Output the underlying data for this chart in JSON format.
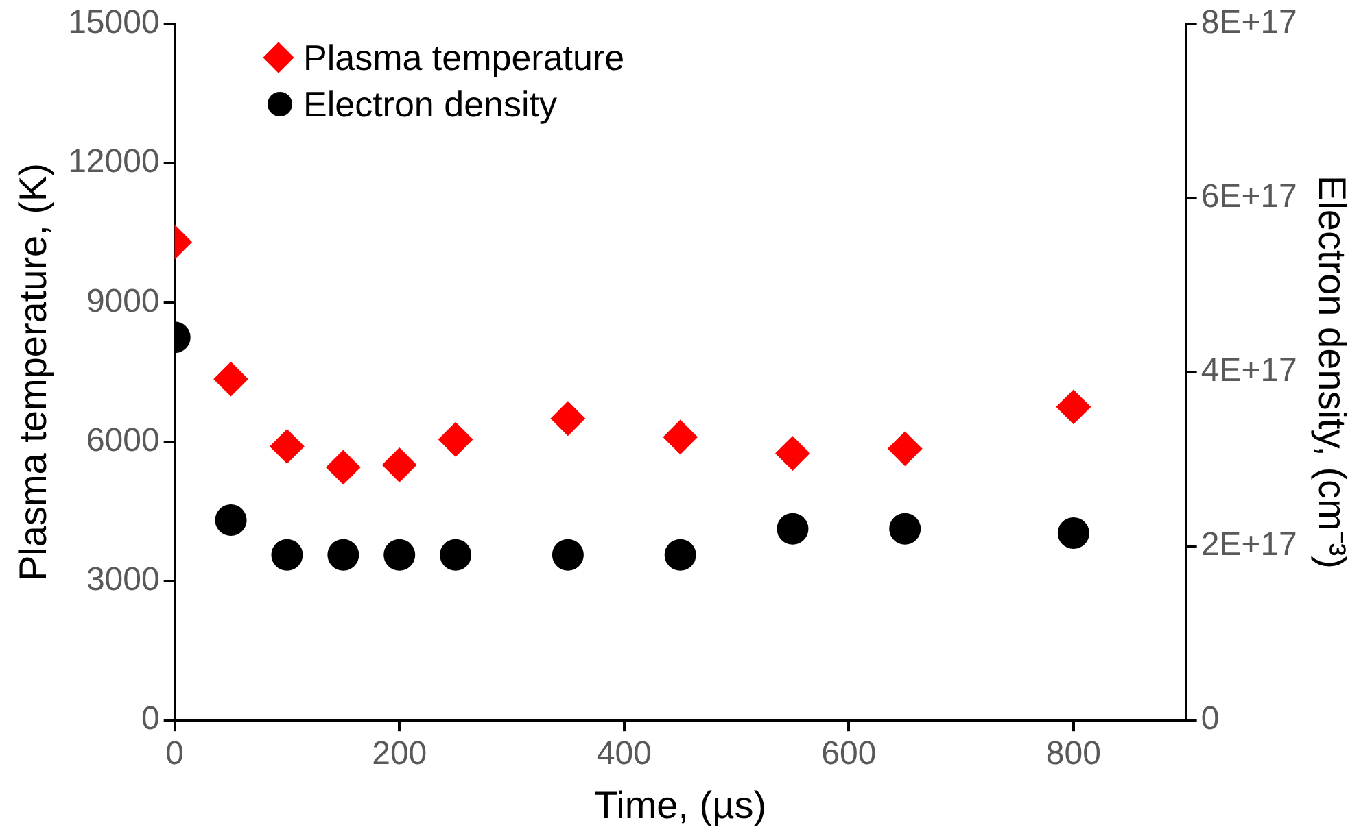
{
  "chart_data": {
    "type": "scatter",
    "xlabel": "Time, (µs)",
    "ylabel": "Plasma temperature, (K)",
    "y2label": "Electron density, (cm⁻³)",
    "x": [
      0,
      50,
      100,
      150,
      200,
      250,
      350,
      450,
      550,
      650,
      800
    ],
    "series": [
      {
        "name": "Plasma temperature",
        "color": "#ff0000",
        "marker": "diamond",
        "values": [
          10300,
          7350,
          5900,
          5450,
          5500,
          6050,
          6500,
          6100,
          5750,
          5850,
          6750
        ]
      },
      {
        "name": "Electron density",
        "color": "#000000",
        "marker": "circle",
        "axis": "y2",
        "values": [
          4.4e+17,
          2.3e+17,
          1.9e+17,
          1.9e+17,
          1.9e+17,
          1.9e+17,
          1.9e+17,
          1.9e+17,
          2.2e+17,
          2.2e+17,
          2.15e+17
        ]
      }
    ],
    "xlim": [
      0,
      900
    ],
    "xticks": [
      0,
      200,
      400,
      600,
      800
    ],
    "ylim": [
      0,
      15000
    ],
    "yticks": [
      0,
      3000,
      6000,
      9000,
      12000,
      15000
    ],
    "y2lim": [
      0,
      8e+17
    ],
    "y2ticks": [
      {
        "value": 0,
        "label": "0"
      },
      {
        "value": 2e+17,
        "label": "2E+17"
      },
      {
        "value": 4e+17,
        "label": "4E+17"
      },
      {
        "value": 6e+17,
        "label": "6E+17"
      },
      {
        "value": 8e+17,
        "label": "8E+17"
      }
    ],
    "grid": false,
    "legend": "top left"
  }
}
